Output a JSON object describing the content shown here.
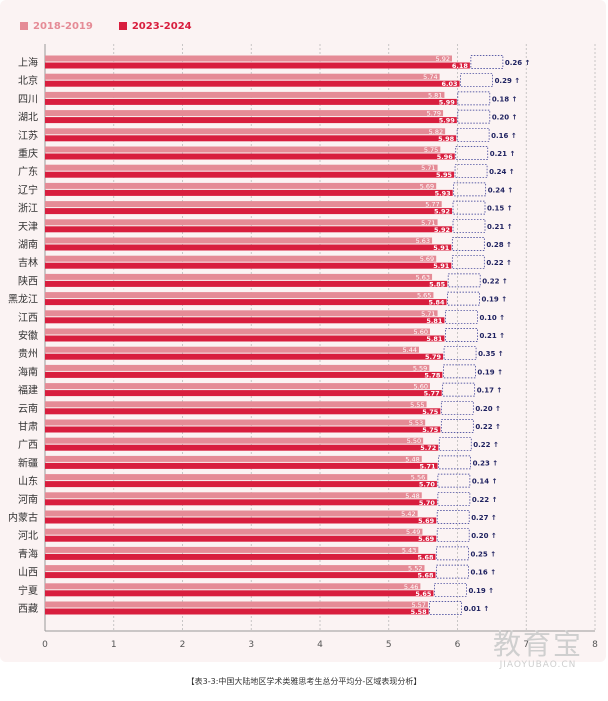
{
  "legend": [
    {
      "label": "2018-2019",
      "color": "#e58b96"
    },
    {
      "label": "2023-2024",
      "color": "#d81e3e"
    }
  ],
  "caption": "【表3-3:中国大陆地区学术类雅思考生总分平均分-区域表现分析】",
  "watermark": {
    "main": "教育宝",
    "sub": "JIAOYUBAO.CN"
  },
  "chart_data": {
    "type": "bar",
    "orientation": "horizontal",
    "xlim": [
      0,
      8
    ],
    "x_ticks": [
      0,
      1,
      2,
      3,
      4,
      5,
      6,
      7,
      8
    ],
    "grid": true,
    "legend_placement": "top-left",
    "categories": [
      "上海",
      "北京",
      "四川",
      "湖北",
      "江苏",
      "重庆",
      "广东",
      "辽宁",
      "浙江",
      "天津",
      "湖南",
      "吉林",
      "陕西",
      "黑龙江",
      "江西",
      "安徽",
      "贵州",
      "海南",
      "福建",
      "云南",
      "甘肃",
      "广西",
      "新疆",
      "山东",
      "河南",
      "内蒙古",
      "河北",
      "青海",
      "山西",
      "宁夏",
      "西藏"
    ],
    "series": [
      {
        "name": "2018-2019",
        "color": "#e58b96",
        "values": [
          5.92,
          5.74,
          5.81,
          5.79,
          5.82,
          5.75,
          5.71,
          5.69,
          5.77,
          5.71,
          5.63,
          5.69,
          5.63,
          5.65,
          5.71,
          5.6,
          5.44,
          5.59,
          5.6,
          5.55,
          5.53,
          5.5,
          5.48,
          5.56,
          5.48,
          5.42,
          5.49,
          5.43,
          5.52,
          5.46,
          5.57
        ]
      },
      {
        "name": "2023-2024",
        "color": "#d81e3e",
        "values": [
          6.18,
          6.03,
          5.99,
          5.99,
          5.98,
          5.96,
          5.95,
          5.93,
          5.92,
          5.92,
          5.91,
          5.91,
          5.85,
          5.84,
          5.81,
          5.81,
          5.79,
          5.78,
          5.77,
          5.75,
          5.75,
          5.72,
          5.71,
          5.7,
          5.7,
          5.69,
          5.69,
          5.68,
          5.68,
          5.65,
          5.58
        ]
      }
    ],
    "differences": [
      "0.26 ↑",
      "0.29 ↑",
      "0.18 ↑",
      "0.20 ↑",
      "0.16 ↑",
      "0.21 ↑",
      "0.24 ↑",
      "0.24 ↑",
      "0.15 ↑",
      "0.21 ↑",
      "0.28 ↑",
      "0.22 ↑",
      "0.22 ↑",
      "0.19 ↑",
      "0.10 ↑",
      "0.21 ↑",
      "0.35 ↑",
      "0.19 ↑",
      "0.17 ↑",
      "0.20 ↑",
      "0.22 ↑",
      "0.22 ↑",
      "0.23 ↑",
      "0.14 ↑",
      "0.22 ↑",
      "0.27 ↑",
      "0.20 ↑",
      "0.25 ↑",
      "0.16 ↑",
      "0.19 ↑",
      "0.01 ↑"
    ]
  }
}
